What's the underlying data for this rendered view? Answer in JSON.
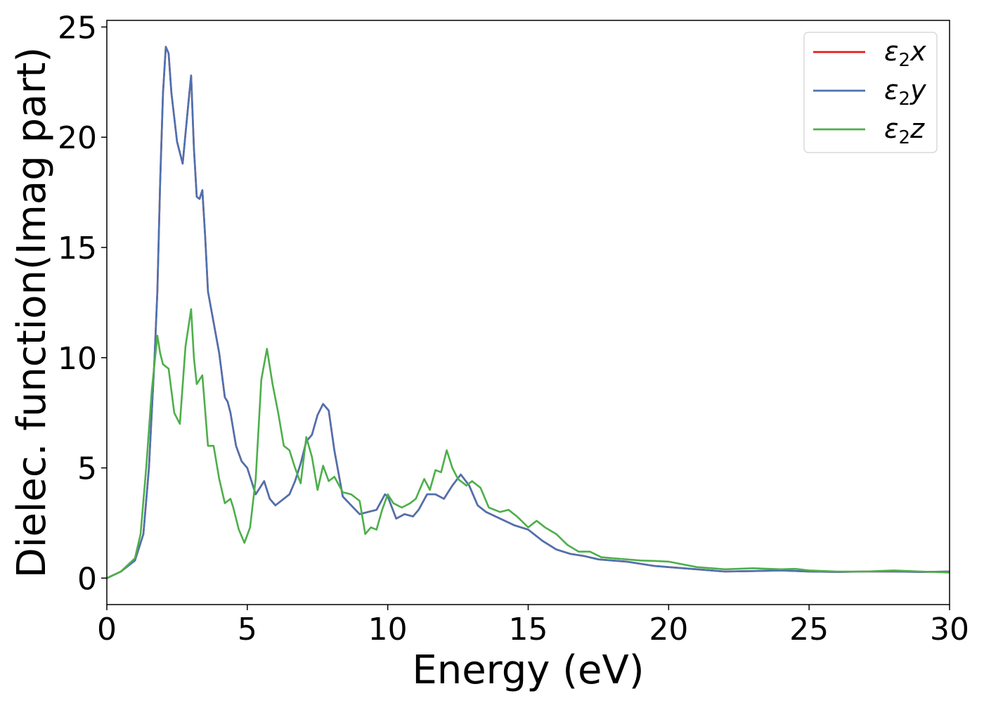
{
  "chart_data": {
    "type": "line",
    "xlabel": "Energy (eV)",
    "ylabel": "Dielec. function(Imag part)",
    "xlim": [
      0,
      30
    ],
    "ylim": [
      -1.2,
      25.3
    ],
    "xticks": [
      0,
      5,
      10,
      15,
      20,
      25,
      30
    ],
    "yticks": [
      0,
      5,
      10,
      15,
      20,
      25
    ],
    "grid": false,
    "legend_position": "top-right",
    "series": [
      {
        "name": "ε2x",
        "label_base": "ε",
        "label_sub": "2",
        "label_tail": "x",
        "color": "#e41a1c",
        "x": [
          0,
          0.5,
          1.0,
          1.3,
          1.5,
          1.7,
          1.8,
          1.9,
          2.0,
          2.1,
          2.2,
          2.3,
          2.5,
          2.7,
          2.9,
          3.0,
          3.1,
          3.2,
          3.3,
          3.4,
          3.5,
          3.6,
          3.8,
          4.0,
          4.2,
          4.3,
          4.4,
          4.6,
          4.8,
          5.0,
          5.3,
          5.6,
          5.8,
          6.0,
          6.3,
          6.5,
          6.7,
          6.9,
          7.1,
          7.3,
          7.5,
          7.7,
          7.9,
          8.1,
          8.4,
          8.7,
          9.0,
          9.3,
          9.6,
          9.9,
          10.0,
          10.3,
          10.6,
          10.9,
          11.1,
          11.4,
          11.7,
          12.0,
          12.3,
          12.6,
          12.9,
          13.2,
          13.5,
          14.0,
          14.5,
          15.0,
          15.5,
          16.0,
          16.5,
          17.0,
          17.5,
          18.0,
          18.5,
          19.0,
          19.5,
          20.0,
          21.0,
          22.0,
          23.0,
          24.0,
          25.0,
          26.0,
          27.0,
          28.0,
          29.0,
          30.0
        ],
        "y": [
          0,
          0.3,
          0.8,
          2.0,
          5.0,
          10.0,
          13.0,
          18.0,
          22.0,
          24.1,
          23.8,
          22.0,
          19.8,
          18.8,
          21.5,
          22.8,
          19.5,
          17.3,
          17.2,
          17.6,
          15.5,
          13.0,
          11.6,
          10.2,
          8.2,
          8.0,
          7.5,
          6.0,
          5.3,
          5.0,
          3.8,
          4.4,
          3.6,
          3.3,
          3.6,
          3.8,
          4.4,
          5.2,
          6.2,
          6.5,
          7.4,
          7.9,
          7.6,
          5.8,
          3.7,
          3.3,
          2.9,
          3.0,
          3.1,
          3.8,
          3.7,
          2.7,
          2.9,
          2.8,
          3.1,
          3.8,
          3.8,
          3.6,
          4.2,
          4.7,
          4.2,
          3.3,
          3.0,
          2.7,
          2.4,
          2.2,
          1.7,
          1.3,
          1.1,
          1.0,
          0.85,
          0.8,
          0.75,
          0.65,
          0.55,
          0.5,
          0.4,
          0.3,
          0.32,
          0.35,
          0.3,
          0.28,
          0.3,
          0.3,
          0.28,
          0.3
        ]
      },
      {
        "name": "ε2y",
        "label_base": "ε",
        "label_sub": "2",
        "label_tail": "y",
        "color": "#4c72b0",
        "x": [
          0,
          0.5,
          1.0,
          1.3,
          1.5,
          1.7,
          1.8,
          1.9,
          2.0,
          2.1,
          2.2,
          2.3,
          2.5,
          2.7,
          2.9,
          3.0,
          3.1,
          3.2,
          3.3,
          3.4,
          3.5,
          3.6,
          3.8,
          4.0,
          4.2,
          4.3,
          4.4,
          4.6,
          4.8,
          5.0,
          5.3,
          5.6,
          5.8,
          6.0,
          6.3,
          6.5,
          6.7,
          6.9,
          7.1,
          7.3,
          7.5,
          7.7,
          7.9,
          8.1,
          8.4,
          8.7,
          9.0,
          9.3,
          9.6,
          9.9,
          10.0,
          10.3,
          10.6,
          10.9,
          11.1,
          11.4,
          11.7,
          12.0,
          12.3,
          12.6,
          12.9,
          13.2,
          13.5,
          14.0,
          14.5,
          15.0,
          15.5,
          16.0,
          16.5,
          17.0,
          17.5,
          18.0,
          18.5,
          19.0,
          19.5,
          20.0,
          21.0,
          22.0,
          23.0,
          24.0,
          25.0,
          26.0,
          27.0,
          28.0,
          29.0,
          30.0
        ],
        "y": [
          0,
          0.3,
          0.8,
          2.0,
          5.0,
          10.0,
          13.0,
          18.0,
          22.0,
          24.1,
          23.8,
          22.0,
          19.8,
          18.8,
          21.5,
          22.8,
          19.5,
          17.3,
          17.2,
          17.6,
          15.5,
          13.0,
          11.6,
          10.2,
          8.2,
          8.0,
          7.5,
          6.0,
          5.3,
          5.0,
          3.8,
          4.4,
          3.6,
          3.3,
          3.6,
          3.8,
          4.4,
          5.2,
          6.2,
          6.5,
          7.4,
          7.9,
          7.6,
          5.8,
          3.7,
          3.3,
          2.9,
          3.0,
          3.1,
          3.8,
          3.7,
          2.7,
          2.9,
          2.8,
          3.1,
          3.8,
          3.8,
          3.6,
          4.2,
          4.7,
          4.2,
          3.3,
          3.0,
          2.7,
          2.4,
          2.2,
          1.7,
          1.3,
          1.1,
          1.0,
          0.85,
          0.8,
          0.75,
          0.65,
          0.55,
          0.5,
          0.4,
          0.3,
          0.32,
          0.35,
          0.3,
          0.28,
          0.3,
          0.3,
          0.28,
          0.3
        ]
      },
      {
        "name": "ε2z",
        "label_base": "ε",
        "label_sub": "2",
        "label_tail": "z",
        "color": "#4daf4a",
        "x": [
          0,
          0.5,
          1.0,
          1.2,
          1.4,
          1.6,
          1.8,
          1.9,
          2.0,
          2.2,
          2.4,
          2.6,
          2.8,
          3.0,
          3.1,
          3.2,
          3.4,
          3.6,
          3.8,
          4.0,
          4.2,
          4.4,
          4.5,
          4.7,
          4.9,
          5.1,
          5.3,
          5.5,
          5.7,
          5.9,
          6.1,
          6.3,
          6.5,
          6.7,
          6.9,
          7.1,
          7.3,
          7.5,
          7.7,
          7.9,
          8.1,
          8.4,
          8.7,
          9.0,
          9.2,
          9.4,
          9.6,
          9.8,
          10.0,
          10.2,
          10.5,
          10.8,
          11.0,
          11.3,
          11.5,
          11.7,
          11.9,
          12.1,
          12.3,
          12.5,
          12.8,
          13.0,
          13.3,
          13.6,
          14.0,
          14.3,
          14.6,
          15.0,
          15.3,
          15.6,
          16.0,
          16.4,
          16.8,
          17.2,
          17.6,
          18.0,
          18.5,
          19.0,
          19.5,
          20.0,
          21.0,
          22.0,
          23.0,
          24.0,
          24.5,
          25.0,
          26.0,
          27.0,
          28.0,
          29.0,
          30.0
        ],
        "y": [
          0,
          0.3,
          0.9,
          2.0,
          5.0,
          8.5,
          11.0,
          10.2,
          9.7,
          9.5,
          7.5,
          7.0,
          10.5,
          12.2,
          10.0,
          8.8,
          9.2,
          6.0,
          6.0,
          4.5,
          3.4,
          3.6,
          3.2,
          2.2,
          1.6,
          2.3,
          4.5,
          9.0,
          10.4,
          8.8,
          7.5,
          6.0,
          5.8,
          5.0,
          4.3,
          6.4,
          5.5,
          4.0,
          5.1,
          4.4,
          4.6,
          3.9,
          3.8,
          3.5,
          2.0,
          2.3,
          2.2,
          3.1,
          3.8,
          3.4,
          3.2,
          3.4,
          3.6,
          4.5,
          4.0,
          4.9,
          4.8,
          5.8,
          5.0,
          4.5,
          4.2,
          4.4,
          4.1,
          3.2,
          3.0,
          3.1,
          2.8,
          2.3,
          2.6,
          2.3,
          2.0,
          1.5,
          1.2,
          1.2,
          0.95,
          0.9,
          0.85,
          0.8,
          0.78,
          0.75,
          0.5,
          0.4,
          0.45,
          0.4,
          0.42,
          0.35,
          0.3,
          0.3,
          0.35,
          0.3,
          0.25
        ]
      }
    ]
  }
}
